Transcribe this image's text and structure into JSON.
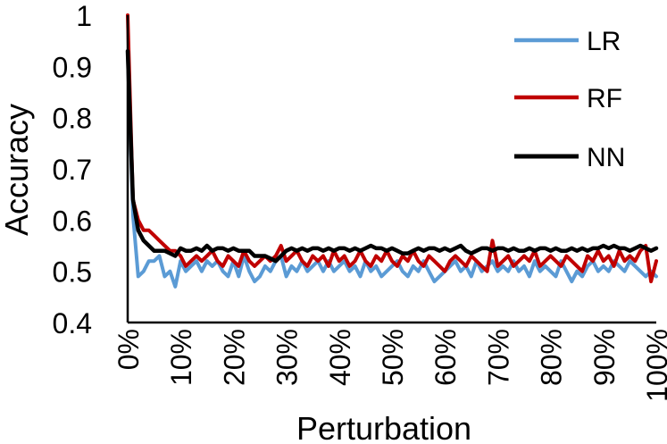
{
  "chart_data": {
    "type": "line",
    "title": "",
    "xlabel": "Perturbation",
    "ylabel": "Accuracy",
    "xlim": [
      0,
      100
    ],
    "ylim": [
      0.4,
      1.0
    ],
    "x_ticks": [
      "0%",
      "10%",
      "20%",
      "30%",
      "40%",
      "50%",
      "60%",
      "70%",
      "80%",
      "90%",
      "100%"
    ],
    "y_ticks": [
      "0.4",
      "0.5",
      "0.6",
      "0.7",
      "0.8",
      "0.9",
      "1"
    ],
    "grid": false,
    "legend_position": "right",
    "x": [
      0,
      1,
      2,
      3,
      4,
      5,
      6,
      7,
      8,
      9,
      10,
      11,
      12,
      13,
      14,
      15,
      16,
      17,
      18,
      19,
      20,
      21,
      22,
      23,
      24,
      25,
      26,
      27,
      28,
      29,
      30,
      31,
      32,
      33,
      34,
      35,
      36,
      37,
      38,
      39,
      40,
      41,
      42,
      43,
      44,
      45,
      46,
      47,
      48,
      49,
      50,
      51,
      52,
      53,
      54,
      55,
      56,
      57,
      58,
      59,
      60,
      61,
      62,
      63,
      64,
      65,
      66,
      67,
      68,
      69,
      70,
      71,
      72,
      73,
      74,
      75,
      76,
      77,
      78,
      79,
      80,
      81,
      82,
      83,
      84,
      85,
      86,
      87,
      88,
      89,
      90,
      91,
      92,
      93,
      94,
      95,
      96,
      97,
      98,
      99,
      100
    ],
    "series": [
      {
        "name": "LR",
        "color": "#5b9bd5",
        "values": [
          0.93,
          0.61,
          0.49,
          0.5,
          0.52,
          0.52,
          0.53,
          0.49,
          0.5,
          0.47,
          0.52,
          0.5,
          0.51,
          0.52,
          0.5,
          0.52,
          0.51,
          0.52,
          0.5,
          0.49,
          0.52,
          0.49,
          0.53,
          0.5,
          0.48,
          0.49,
          0.51,
          0.5,
          0.52,
          0.53,
          0.49,
          0.51,
          0.5,
          0.52,
          0.5,
          0.51,
          0.52,
          0.5,
          0.52,
          0.5,
          0.51,
          0.52,
          0.5,
          0.51,
          0.49,
          0.52,
          0.5,
          0.51,
          0.49,
          0.5,
          0.51,
          0.52,
          0.5,
          0.49,
          0.51,
          0.5,
          0.52,
          0.5,
          0.48,
          0.49,
          0.5,
          0.51,
          0.52,
          0.5,
          0.51,
          0.49,
          0.52,
          0.5,
          0.51,
          0.52,
          0.5,
          0.51,
          0.5,
          0.52,
          0.5,
          0.51,
          0.49,
          0.52,
          0.5,
          0.51,
          0.5,
          0.49,
          0.52,
          0.5,
          0.48,
          0.5,
          0.49,
          0.51,
          0.52,
          0.5,
          0.51,
          0.5,
          0.52,
          0.51,
          0.5,
          0.52,
          0.51,
          0.5,
          0.49,
          0.5,
          0.49
        ]
      },
      {
        "name": "RF",
        "color": "#c00000",
        "values": [
          1.0,
          0.64,
          0.6,
          0.58,
          0.58,
          0.57,
          0.56,
          0.55,
          0.54,
          0.54,
          0.53,
          0.51,
          0.52,
          0.53,
          0.52,
          0.53,
          0.54,
          0.52,
          0.51,
          0.53,
          0.52,
          0.51,
          0.54,
          0.52,
          0.51,
          0.52,
          0.53,
          0.52,
          0.53,
          0.55,
          0.52,
          0.53,
          0.54,
          0.52,
          0.51,
          0.53,
          0.52,
          0.53,
          0.51,
          0.54,
          0.52,
          0.53,
          0.51,
          0.52,
          0.54,
          0.52,
          0.51,
          0.53,
          0.52,
          0.54,
          0.52,
          0.51,
          0.53,
          0.52,
          0.54,
          0.52,
          0.51,
          0.53,
          0.52,
          0.51,
          0.5,
          0.52,
          0.53,
          0.52,
          0.51,
          0.53,
          0.52,
          0.51,
          0.5,
          0.56,
          0.51,
          0.52,
          0.53,
          0.51,
          0.52,
          0.53,
          0.52,
          0.54,
          0.51,
          0.52,
          0.53,
          0.52,
          0.51,
          0.53,
          0.52,
          0.51,
          0.5,
          0.53,
          0.52,
          0.54,
          0.52,
          0.53,
          0.51,
          0.54,
          0.52,
          0.53,
          0.52,
          0.54,
          0.55,
          0.48,
          0.52
        ]
      },
      {
        "name": "NN",
        "color": "#000000",
        "values": [
          0.93,
          0.64,
          0.58,
          0.56,
          0.55,
          0.54,
          0.54,
          0.54,
          0.535,
          0.53,
          0.545,
          0.54,
          0.54,
          0.545,
          0.54,
          0.55,
          0.54,
          0.545,
          0.545,
          0.54,
          0.545,
          0.54,
          0.54,
          0.54,
          0.53,
          0.53,
          0.53,
          0.525,
          0.52,
          0.53,
          0.54,
          0.545,
          0.54,
          0.545,
          0.54,
          0.545,
          0.545,
          0.54,
          0.545,
          0.54,
          0.545,
          0.545,
          0.54,
          0.545,
          0.54,
          0.545,
          0.55,
          0.545,
          0.545,
          0.54,
          0.545,
          0.54,
          0.535,
          0.535,
          0.54,
          0.545,
          0.54,
          0.545,
          0.545,
          0.54,
          0.545,
          0.54,
          0.545,
          0.55,
          0.54,
          0.535,
          0.54,
          0.545,
          0.545,
          0.54,
          0.545,
          0.545,
          0.54,
          0.545,
          0.54,
          0.54,
          0.545,
          0.54,
          0.545,
          0.545,
          0.54,
          0.545,
          0.54,
          0.54,
          0.545,
          0.54,
          0.545,
          0.54,
          0.545,
          0.545,
          0.55,
          0.545,
          0.55,
          0.545,
          0.545,
          0.54,
          0.545,
          0.55,
          0.545,
          0.54,
          0.545
        ]
      }
    ]
  }
}
